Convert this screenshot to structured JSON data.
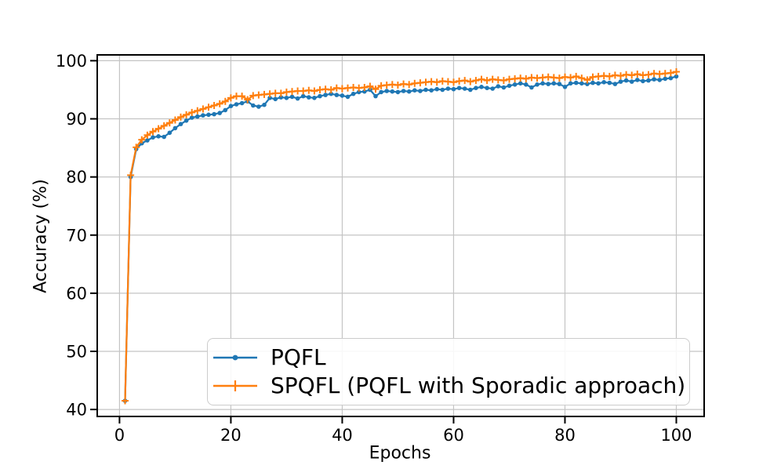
{
  "figure": {
    "background": "#ffffff",
    "axis_color": "#000000",
    "grid_color": "#c4c4c4",
    "legend_border_color": "#cccccc"
  },
  "chart_data": {
    "type": "line",
    "title": "",
    "xlabel": "Epochs",
    "ylabel": "Accuracy (%)",
    "xlim": [
      -4,
      105
    ],
    "ylim": [
      38.8,
      101.0
    ],
    "xticks": [
      0,
      20,
      40,
      60,
      80,
      100
    ],
    "yticks": [
      40,
      50,
      60,
      70,
      80,
      90,
      100
    ],
    "grid": true,
    "legend_position": "lower center inside axes",
    "x": [
      1,
      2,
      3,
      4,
      5,
      6,
      7,
      8,
      9,
      10,
      11,
      12,
      13,
      14,
      15,
      16,
      17,
      18,
      19,
      20,
      21,
      22,
      23,
      24,
      25,
      26,
      27,
      28,
      29,
      30,
      31,
      32,
      33,
      34,
      35,
      36,
      37,
      38,
      39,
      40,
      41,
      42,
      43,
      44,
      45,
      46,
      47,
      48,
      49,
      50,
      51,
      52,
      53,
      54,
      55,
      56,
      57,
      58,
      59,
      60,
      61,
      62,
      63,
      64,
      65,
      66,
      67,
      68,
      69,
      70,
      71,
      72,
      73,
      74,
      75,
      76,
      77,
      78,
      79,
      80,
      81,
      82,
      83,
      84,
      85,
      86,
      87,
      88,
      89,
      90,
      91,
      92,
      93,
      94,
      95,
      96,
      97,
      98,
      99,
      100
    ],
    "series": [
      {
        "name": "PQFL",
        "color": "#1f77b4",
        "marker": "dot",
        "values": [
          41.5,
          80.0,
          84.8,
          85.8,
          86.3,
          86.8,
          87.0,
          86.9,
          87.6,
          88.4,
          89.1,
          89.7,
          90.2,
          90.4,
          90.6,
          90.7,
          90.8,
          91.0,
          91.5,
          92.2,
          92.5,
          92.7,
          93.0,
          92.3,
          92.1,
          92.4,
          93.6,
          93.4,
          93.7,
          93.6,
          93.8,
          93.5,
          93.9,
          93.7,
          93.6,
          93.9,
          94.1,
          94.3,
          94.1,
          94.0,
          93.8,
          94.3,
          94.6,
          94.7,
          95.0,
          93.9,
          94.6,
          94.8,
          94.7,
          94.6,
          94.8,
          94.7,
          94.9,
          94.8,
          95.0,
          94.9,
          95.1,
          95.0,
          95.2,
          95.1,
          95.3,
          95.2,
          95.0,
          95.3,
          95.5,
          95.3,
          95.2,
          95.6,
          95.4,
          95.7,
          95.9,
          96.1,
          95.9,
          95.4,
          95.9,
          96.1,
          96.0,
          96.1,
          96.0,
          95.5,
          96.1,
          96.2,
          96.1,
          96.0,
          96.2,
          96.1,
          96.3,
          96.2,
          96.0,
          96.4,
          96.6,
          96.4,
          96.7,
          96.5,
          96.6,
          96.8,
          96.7,
          96.9,
          97.0,
          97.3
        ]
      },
      {
        "name": "SPQFL (PQFL with Sporadic approach)",
        "color": "#ff7f0e",
        "marker": "plus",
        "values": [
          41.5,
          80.3,
          85.1,
          86.4,
          87.2,
          87.8,
          88.3,
          88.8,
          89.3,
          89.8,
          90.3,
          90.7,
          91.1,
          91.4,
          91.7,
          92.0,
          92.3,
          92.6,
          93.0,
          93.6,
          93.9,
          93.9,
          93.3,
          94.0,
          94.1,
          94.2,
          94.3,
          94.4,
          94.4,
          94.6,
          94.7,
          94.8,
          94.8,
          94.9,
          94.8,
          95.0,
          95.1,
          95.0,
          95.3,
          95.2,
          95.3,
          95.4,
          95.3,
          95.4,
          95.6,
          95.1,
          95.7,
          95.8,
          95.9,
          95.8,
          96.0,
          95.9,
          96.1,
          96.2,
          96.3,
          96.4,
          96.3,
          96.5,
          96.4,
          96.3,
          96.5,
          96.6,
          96.4,
          96.6,
          96.8,
          96.6,
          96.8,
          96.7,
          96.6,
          96.8,
          96.9,
          97.0,
          96.9,
          97.1,
          97.0,
          97.1,
          97.2,
          97.1,
          97.0,
          97.2,
          97.1,
          97.3,
          97.0,
          96.7,
          97.2,
          97.3,
          97.4,
          97.3,
          97.5,
          97.4,
          97.6,
          97.5,
          97.7,
          97.5,
          97.6,
          97.8,
          97.7,
          97.8,
          97.9,
          98.1
        ]
      }
    ]
  }
}
